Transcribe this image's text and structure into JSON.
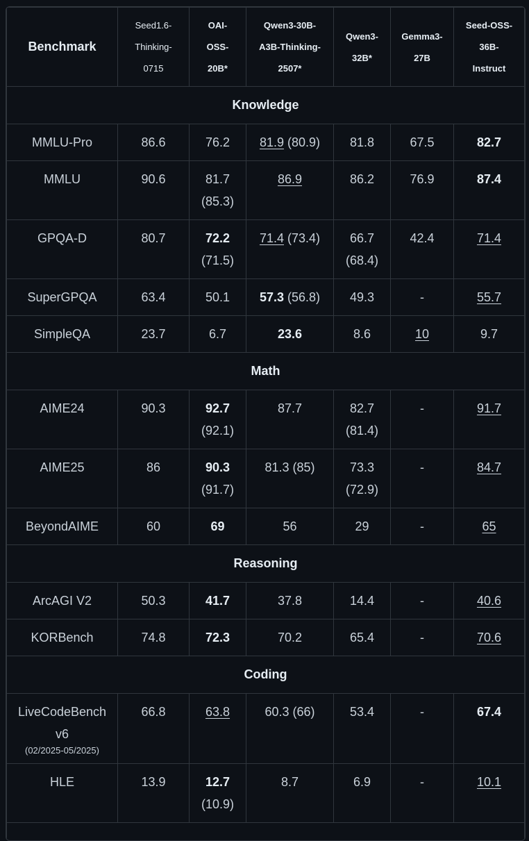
{
  "headers": {
    "benchmark": "Benchmark",
    "c1": [
      "Seed1.6-",
      "Thinking-",
      "0715"
    ],
    "c2": [
      "OAI-",
      "OSS-",
      "20B*"
    ],
    "c3": [
      "Qwen3-30B-",
      "A3B-Thinking-",
      "2507*"
    ],
    "c4": [
      "Qwen3-",
      "32B*"
    ],
    "c5": [
      "Gemma3-",
      "27B"
    ],
    "c6": [
      "Seed-OSS-",
      "36B-",
      "Instruct"
    ]
  },
  "sections": [
    "Knowledge",
    "Math",
    "Reasoning",
    "Coding"
  ],
  "rows": {
    "mmlu_pro": {
      "name": "MMLU-Pro",
      "c1": "86.6",
      "c2": "76.2",
      "c3": "81.9",
      "c3b": "(80.9)",
      "c4": "81.8",
      "c5": "67.5",
      "c6": "82.7"
    },
    "mmlu": {
      "name": "MMLU",
      "c1": "90.6",
      "c2": "81.7",
      "c2b": "(85.3)",
      "c3": "86.9",
      "c4": "86.2",
      "c5": "76.9",
      "c6": "87.4"
    },
    "gpqa": {
      "name": "GPQA-D",
      "c1": "80.7",
      "c2": "72.2",
      "c2b": "(71.5)",
      "c3": "71.4",
      "c3b": "(73.4)",
      "c4": "66.7",
      "c4b": "(68.4)",
      "c5": "42.4",
      "c6": "71.4"
    },
    "supergpqa": {
      "name": "SuperGPQA",
      "c1": "63.4",
      "c2": "50.1",
      "c3": "57.3",
      "c3b": "(56.8)",
      "c4": "49.3",
      "c5": "-",
      "c6": "55.7"
    },
    "simpleqa": {
      "name": "SimpleQA",
      "c1": "23.7",
      "c2": "6.7",
      "c3": "23.6",
      "c4": "8.6",
      "c5": "10",
      "c6": "9.7"
    },
    "aime24": {
      "name": "AIME24",
      "c1": "90.3",
      "c2": "92.7",
      "c2b": "(92.1)",
      "c3": "87.7",
      "c4": "82.7",
      "c4b": "(81.4)",
      "c5": "-",
      "c6": "91.7"
    },
    "aime25": {
      "name": "AIME25",
      "c1": "86",
      "c2": "90.3",
      "c2b": "(91.7)",
      "c3": "81.3 (85)",
      "c4": "73.3",
      "c4b": "(72.9)",
      "c5": "-",
      "c6": "84.7"
    },
    "beyondaime": {
      "name": "BeyondAIME",
      "c1": "60",
      "c2": "69",
      "c3": "56",
      "c4": "29",
      "c5": "-",
      "c6": "65"
    },
    "arcagi": {
      "name": "ArcAGI V2",
      "c1": "50.3",
      "c2": "41.7",
      "c3": "37.8",
      "c4": "14.4",
      "c5": "-",
      "c6": "40.6"
    },
    "korbench": {
      "name": "KORBench",
      "c1": "74.8",
      "c2": "72.3",
      "c3": "70.2",
      "c4": "65.4",
      "c5": "-",
      "c6": "70.6"
    },
    "lcb": {
      "name": "LiveCodeBench",
      "name2": "v6",
      "name3": "(02/2025-05/2025)",
      "c1": "66.8",
      "c2": "63.8",
      "c3": "60.3 (66)",
      "c4": "53.4",
      "c5": "-",
      "c6": "67.4"
    },
    "hle": {
      "name": "HLE",
      "c1": "13.9",
      "c2": "12.7",
      "c2b": "(10.9)",
      "c3": "8.7",
      "c4": "6.9",
      "c5": "-",
      "c6": "10.1"
    }
  }
}
